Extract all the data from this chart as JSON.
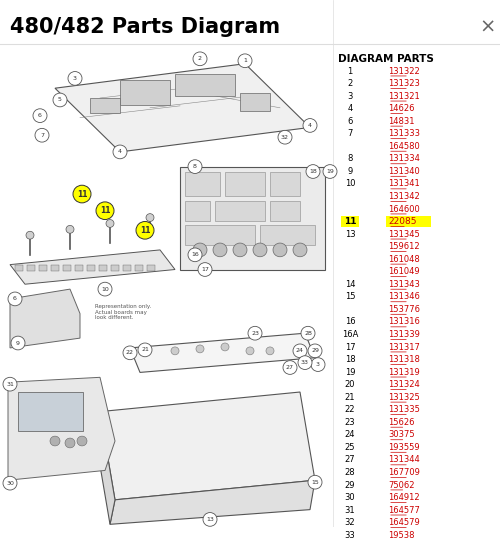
{
  "title": "480/482 Parts Diagram",
  "close_x": "×",
  "bg_color": "#ffffff",
  "title_color": "#000000",
  "title_fontsize": 15,
  "diagram_parts_header": "DIAGRAM PARTS",
  "parts": [
    {
      "num": "1",
      "code": "131322"
    },
    {
      "num": "2",
      "code": "131323"
    },
    {
      "num": "3",
      "code": "131321"
    },
    {
      "num": "4",
      "code": "14626"
    },
    {
      "num": "6",
      "code": "14831"
    },
    {
      "num": "7",
      "code": "131333"
    },
    {
      "num": "",
      "code": "164580"
    },
    {
      "num": "8",
      "code": "131334"
    },
    {
      "num": "9",
      "code": "131340"
    },
    {
      "num": "10",
      "code": "131341"
    },
    {
      "num": "",
      "code": "131342"
    },
    {
      "num": "",
      "code": "164600"
    },
    {
      "num": "11",
      "code": "22085",
      "highlight": true
    },
    {
      "num": "13",
      "code": "131345"
    },
    {
      "num": "",
      "code": "159612"
    },
    {
      "num": "",
      "code": "161048"
    },
    {
      "num": "",
      "code": "161049"
    },
    {
      "num": "14",
      "code": "131343"
    },
    {
      "num": "15",
      "code": "131346"
    },
    {
      "num": "",
      "code": "153776"
    },
    {
      "num": "16",
      "code": "131316"
    },
    {
      "num": "16A",
      "code": "131339"
    },
    {
      "num": "17",
      "code": "131317"
    },
    {
      "num": "18",
      "code": "131318"
    },
    {
      "num": "19",
      "code": "131319"
    },
    {
      "num": "20",
      "code": "131324"
    },
    {
      "num": "21",
      "code": "131325"
    },
    {
      "num": "22",
      "code": "131335"
    },
    {
      "num": "23",
      "code": "15626"
    },
    {
      "num": "24",
      "code": "30375"
    },
    {
      "num": "25",
      "code": "193559"
    },
    {
      "num": "27",
      "code": "131344"
    },
    {
      "num": "28",
      "code": "167709"
    },
    {
      "num": "29",
      "code": "75062"
    },
    {
      "num": "30",
      "code": "164912"
    },
    {
      "num": "31",
      "code": "164577"
    },
    {
      "num": "32",
      "code": "164579"
    },
    {
      "num": "33",
      "code": "19538"
    }
  ],
  "link_color": "#cc0000",
  "highlight_bg": "#ffff00",
  "border_color": "#cccccc",
  "cap_circles": [
    [
      200,
      255
    ],
    [
      220,
      255
    ],
    [
      240,
      255
    ],
    [
      260,
      255
    ],
    [
      280,
      255
    ],
    [
      300,
      255
    ]
  ]
}
